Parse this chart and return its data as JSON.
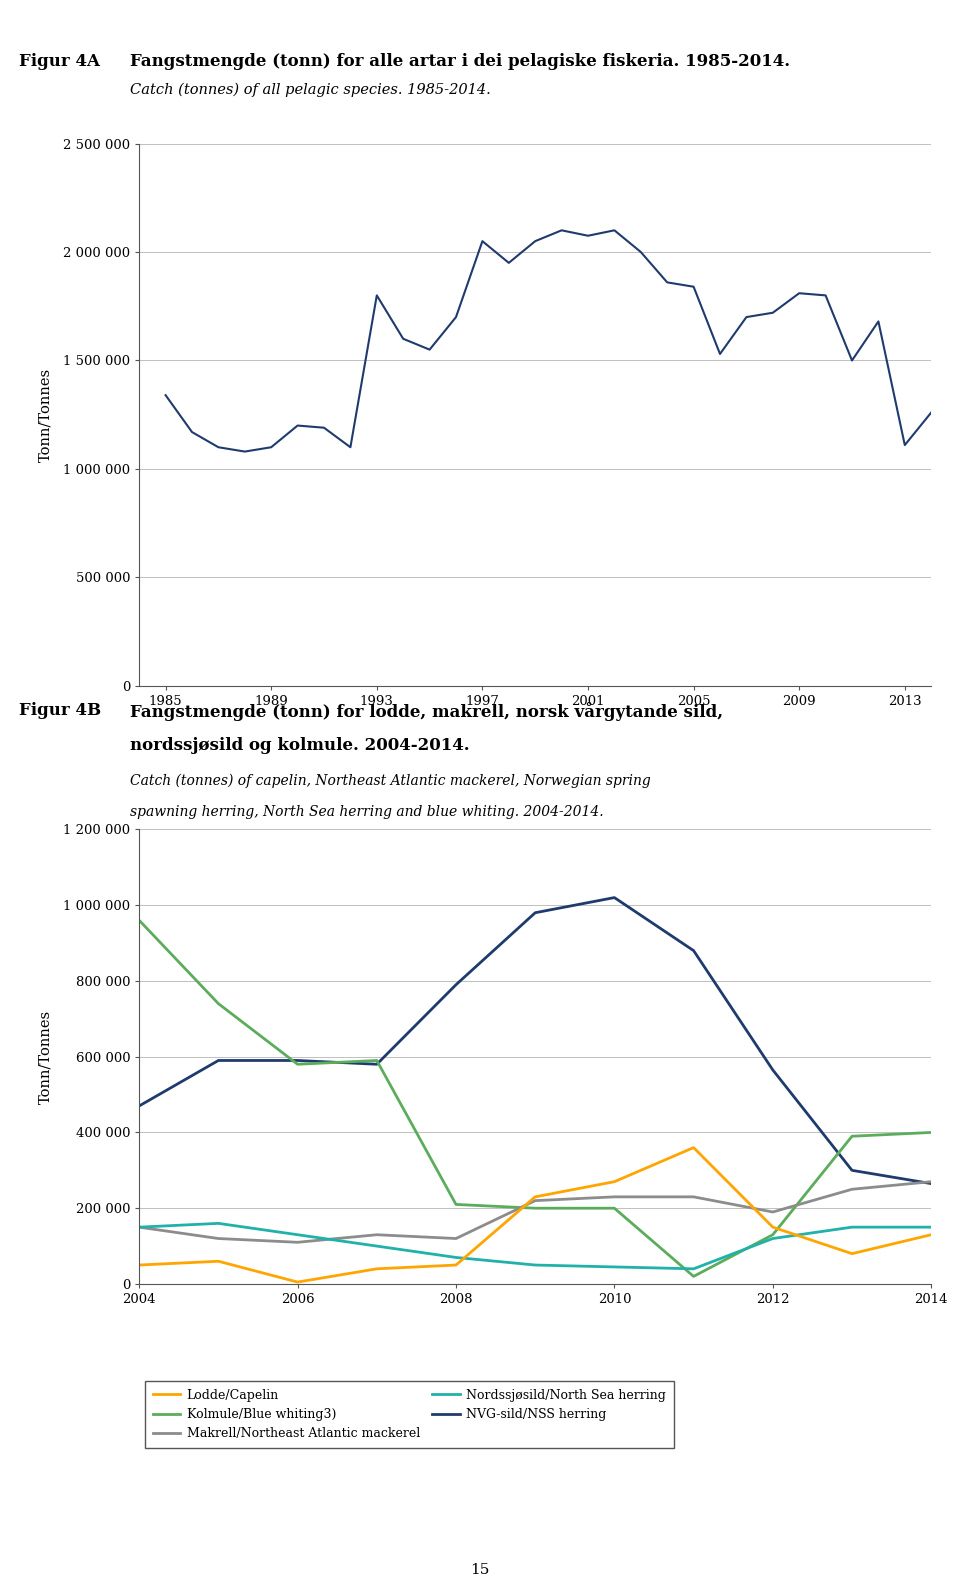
{
  "fig4a_title_no_label": "Figur 4A",
  "fig4a_title_no_text": "Fangstmengde (tonn) for alle artar i dei pelagiske fiskeria. 1985-2014.",
  "fig4a_title_en": "Catch (tonnes) of all pelagic species. 1985-2014.",
  "fig4a_years": [
    1985,
    1986,
    1987,
    1988,
    1989,
    1990,
    1991,
    1992,
    1993,
    1994,
    1995,
    1996,
    1997,
    1998,
    1999,
    2000,
    2001,
    2002,
    2003,
    2004,
    2005,
    2006,
    2007,
    2008,
    2009,
    2010,
    2011,
    2012,
    2013,
    2014
  ],
  "fig4a_values": [
    1340000,
    1170000,
    1100000,
    1080000,
    1100000,
    1200000,
    1190000,
    1100000,
    1800000,
    1600000,
    1550000,
    1700000,
    2050000,
    1950000,
    2050000,
    2100000,
    2075000,
    2100000,
    2000000,
    1860000,
    1840000,
    1530000,
    1700000,
    1720000,
    1810000,
    1800000,
    1500000,
    1680000,
    1110000,
    1260000
  ],
  "fig4a_color": "#1F3B6E",
  "fig4a_ylabel": "Tonn/Tonnes",
  "fig4a_ylim": [
    0,
    2500000
  ],
  "fig4a_yticks": [
    0,
    500000,
    1000000,
    1500000,
    2000000,
    2500000
  ],
  "fig4a_ytick_labels": [
    "0",
    "500 000",
    "1 000 000",
    "1 500 000",
    "2 000 000",
    "2 500 000"
  ],
  "fig4a_xticks": [
    1985,
    1989,
    1993,
    1997,
    2001,
    2005,
    2009,
    2013
  ],
  "fig4b_label": "Figur 4B",
  "fig4b_title_no_line1": "Fangstmengde (tonn) for lodde, makrell, norsk vårgytande sild,",
  "fig4b_title_no_line2": "nordssjøsild og kolmule. 2004-2014.",
  "fig4b_title_en_line1": "Catch (tonnes) of capelin, Northeast Atlantic mackerel, Norwegian spring",
  "fig4b_title_en_line2": "spawning herring, North Sea herring and blue whiting. 2004-2014.",
  "fig4b_years": [
    2004,
    2005,
    2006,
    2007,
    2008,
    2009,
    2010,
    2011,
    2012,
    2013,
    2014
  ],
  "fig4b_ylabel": "Tonn/Tonnes",
  "fig4b_ylim": [
    0,
    1200000
  ],
  "fig4b_yticks": [
    0,
    200000,
    400000,
    600000,
    800000,
    1000000,
    1200000
  ],
  "fig4b_ytick_labels": [
    "0",
    "200 000",
    "400 000",
    "600 000",
    "800 000",
    "1 000 000",
    "1 200 000"
  ],
  "fig4b_xticks": [
    2004,
    2006,
    2008,
    2010,
    2012,
    2014
  ],
  "lodde": [
    50000,
    60000,
    5000,
    40000,
    50000,
    230000,
    270000,
    360000,
    150000,
    80000,
    130000
  ],
  "makrell": [
    150000,
    120000,
    110000,
    130000,
    120000,
    220000,
    230000,
    230000,
    190000,
    250000,
    270000
  ],
  "nvg_sild": [
    470000,
    590000,
    590000,
    580000,
    790000,
    980000,
    1020000,
    880000,
    565000,
    300000,
    265000
  ],
  "nordsjosild": [
    150000,
    160000,
    130000,
    100000,
    70000,
    50000,
    45000,
    40000,
    120000,
    150000,
    150000
  ],
  "kolmule": [
    960000,
    740000,
    580000,
    590000,
    210000,
    200000,
    200000,
    20000,
    130000,
    390000,
    400000
  ],
  "lodde_color": "#FFA500",
  "makrell_color": "#8C8C8C",
  "nvg_sild_color": "#1F3B6E",
  "nordsjosild_color": "#20B2AA",
  "kolmule_color": "#5BAD5B",
  "background_color": "#FFFFFF",
  "page_number": "15"
}
